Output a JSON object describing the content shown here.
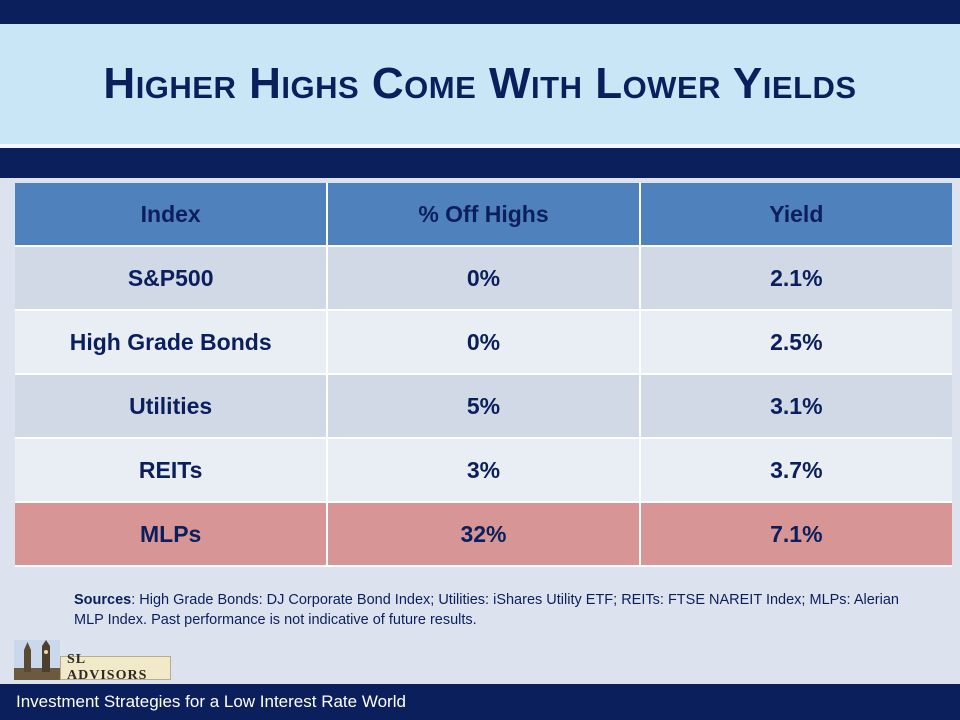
{
  "title": "Higher Highs Come With Lower Yields",
  "table": {
    "headers": [
      "Index",
      "% Off Highs",
      "Yield"
    ],
    "rows": [
      {
        "index": "S&P500",
        "off_highs": "0%",
        "yield": "2.1%"
      },
      {
        "index": "High Grade Bonds",
        "off_highs": "0%",
        "yield": "2.5%"
      },
      {
        "index": "Utilities",
        "off_highs": "5%",
        "yield": "3.1%"
      },
      {
        "index": "REITs",
        "off_highs": "3%",
        "yield": "3.7%"
      },
      {
        "index": "MLPs",
        "off_highs": "32%",
        "yield": "7.1%"
      }
    ]
  },
  "sources": {
    "label": "Sources",
    "text": ": High Grade Bonds: DJ Corporate Bond Index; Utilities: iShares Utility ETF; REITs: FTSE NAREIT Index; MLPs: Alerian MLP Index. Past performance is not indicative of future results."
  },
  "logo": {
    "text": "SL ADVISORS"
  },
  "footer": {
    "text": "Investment Strategies for a Low Interest Rate World"
  },
  "colors": {
    "navy": "#0b1f5c",
    "title_band": "#c8e6f6",
    "header_blue": "#4f81bd",
    "highlight_row": "#d89595"
  }
}
